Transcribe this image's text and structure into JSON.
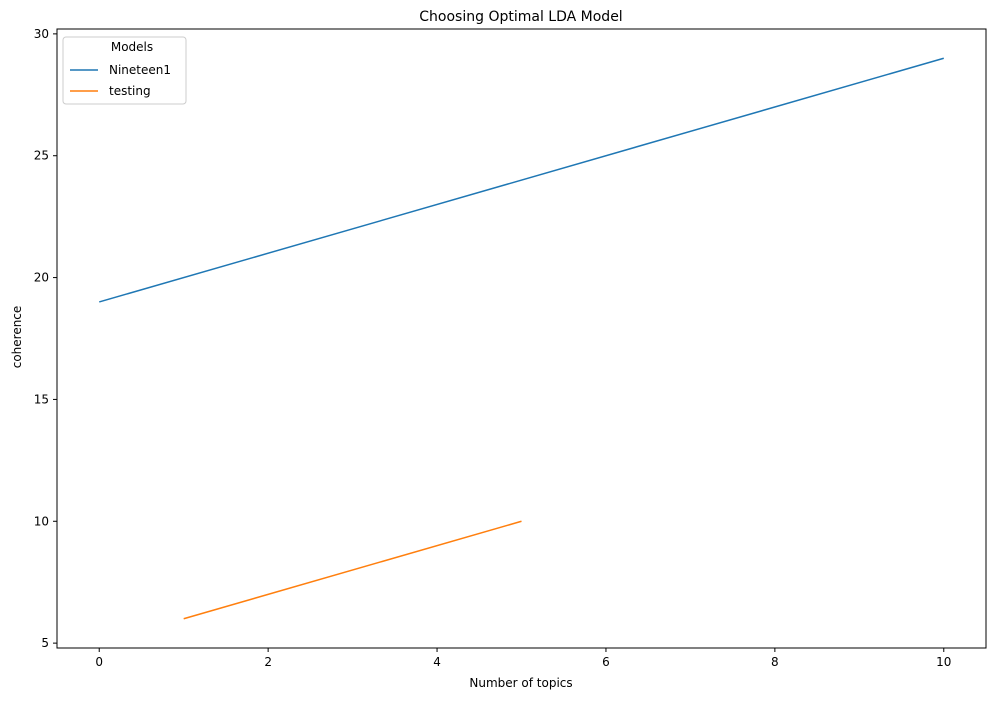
{
  "chart_data": {
    "type": "line",
    "title": "Choosing Optimal LDA Model",
    "xlabel": "Number of topics",
    "ylabel": "coherence",
    "xlim": [
      -0.5,
      10.5
    ],
    "ylim": [
      4.8,
      30.2
    ],
    "xticks": [
      0,
      2,
      4,
      6,
      8,
      10
    ],
    "yticks": [
      5,
      10,
      15,
      20,
      25,
      30
    ],
    "grid": false,
    "legend": {
      "title": "Models",
      "placement": "top-left"
    },
    "series": [
      {
        "name": "Nineteen1",
        "color": "#1f77b4",
        "x": [
          0,
          10
        ],
        "y": [
          19,
          29
        ]
      },
      {
        "name": "testing",
        "color": "#ff7f0e",
        "x": [
          1,
          5
        ],
        "y": [
          6,
          10
        ]
      }
    ]
  }
}
